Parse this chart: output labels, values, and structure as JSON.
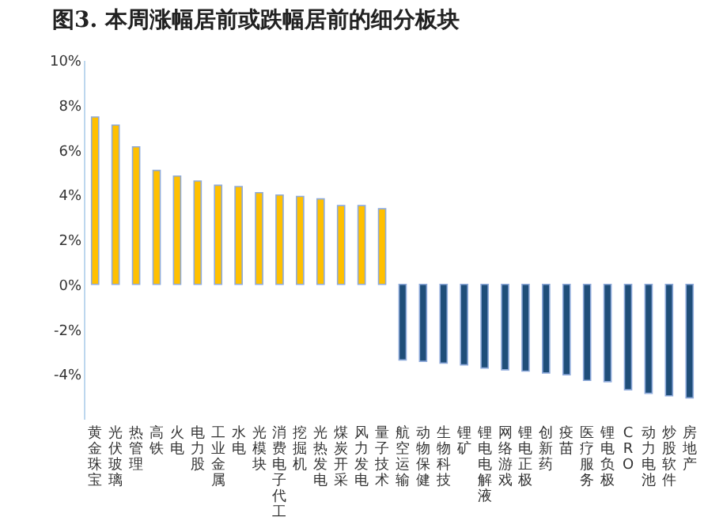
{
  "chart_data": {
    "type": "bar",
    "title": "图3. 本周涨幅居前或跌幅居前的细分板块",
    "categories": [
      "黄金珠宝",
      "光伏玻璃",
      "热管理",
      "高铁",
      "火电",
      "电力股",
      "工业金属",
      "水电",
      "光模块",
      "消费电子代工",
      "挖掘机",
      "光热发电",
      "煤炭开采",
      "风力发电",
      "量子技术",
      "航空运输",
      "动物保健",
      "生物科技",
      "锂矿",
      "锂电电解液",
      "网络游戏",
      "锂电正极",
      "创新药",
      "疫苗",
      "医疗服务",
      "锂电负极",
      "CRO",
      "动力电池",
      "炒股软件",
      "房地产"
    ],
    "values": [
      7.46,
      7.1,
      6.13,
      5.08,
      4.83,
      4.61,
      4.42,
      4.36,
      4.09,
      3.98,
      3.92,
      3.81,
      3.51,
      3.51,
      3.37,
      -3.37,
      -3.43,
      -3.51,
      -3.59,
      -3.73,
      -3.81,
      -3.87,
      -3.95,
      -4.03,
      -4.28,
      -4.34,
      -4.7,
      -4.86,
      -4.97,
      -5.06
    ],
    "colors": [
      "#ffc000",
      "#ffc000",
      "#ffc000",
      "#ffc000",
      "#ffc000",
      "#ffc000",
      "#ffc000",
      "#ffc000",
      "#ffc000",
      "#ffc000",
      "#ffc000",
      "#ffc000",
      "#ffc000",
      "#ffc000",
      "#ffc000",
      "#1f4e79",
      "#1f4e79",
      "#1f4e79",
      "#1f4e79",
      "#1f4e79",
      "#1f4e79",
      "#1f4e79",
      "#1f4e79",
      "#1f4e79",
      "#1f4e79",
      "#1f4e79",
      "#1f4e79",
      "#1f4e79",
      "#1f4e79",
      "#1f4e79"
    ],
    "ylim": [
      -6,
      10
    ],
    "yticks": [
      {
        "value": -4,
        "label": "-4%"
      },
      {
        "value": -2,
        "label": "-2%"
      },
      {
        "value": 0,
        "label": "0%"
      },
      {
        "value": 2,
        "label": "2%"
      },
      {
        "value": 4,
        "label": "4%"
      },
      {
        "value": 6,
        "label": "6%"
      },
      {
        "value": 8,
        "label": "8%"
      },
      {
        "value": 10,
        "label": "10%"
      }
    ],
    "grid": false
  }
}
